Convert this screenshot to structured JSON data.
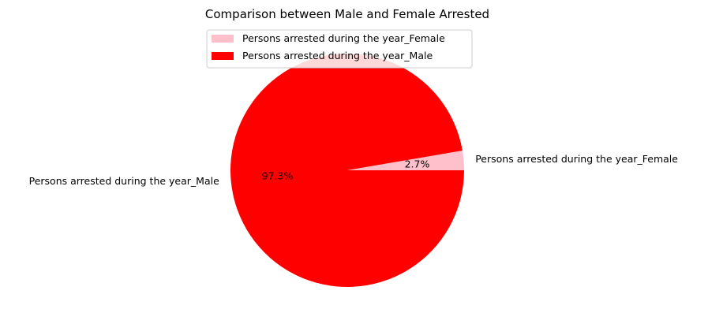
{
  "chart_data": {
    "type": "pie",
    "title": "Comparison between Male and Female Arrested",
    "slices": [
      {
        "label": "Persons arrested during the year_Female",
        "value": 2.7,
        "pct_label": "2.7%",
        "color": "#ffc0cb"
      },
      {
        "label": "Persons arrested during the year_Male",
        "value": 97.3,
        "pct_label": "97.3%",
        "color": "#ff0000"
      }
    ],
    "start_angle_deg": 0,
    "direction": "counterclockwise",
    "legend": {
      "placement": "top-center",
      "entries": [
        "Persons arrested during the year_Female",
        "Persons arrested during the year_Male"
      ]
    }
  }
}
